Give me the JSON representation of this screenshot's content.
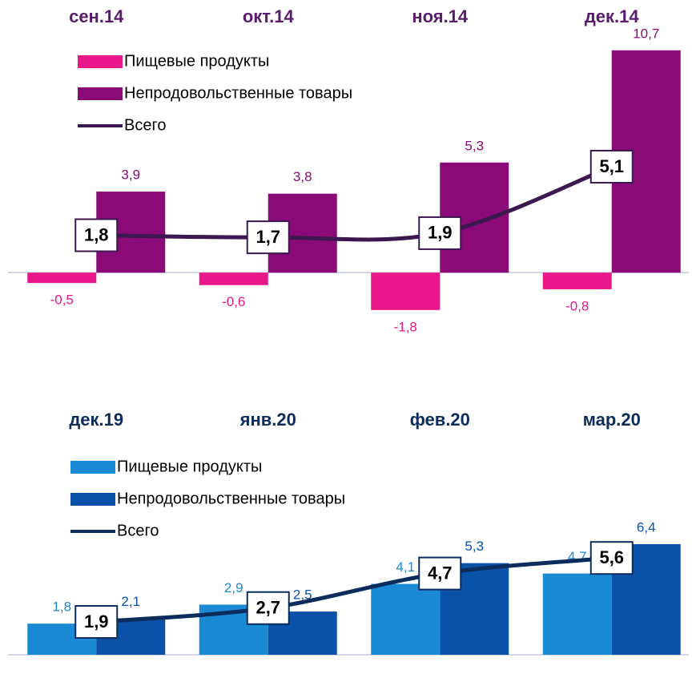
{
  "chart_data": [
    {
      "type": "bar",
      "categories": [
        "сен.14",
        "окт.14",
        "ноя.14",
        "дек.14"
      ],
      "ylim": [
        -2.5,
        11
      ],
      "series": [
        {
          "name": "Пищевые продукты",
          "color": "#e8178a",
          "values": [
            -0.5,
            -0.6,
            -1.8,
            -0.8
          ],
          "value_labels": [
            "-0,5",
            "-0,6",
            "-1,8",
            "-0,8"
          ]
        },
        {
          "name": "Непродовольственные товары",
          "color": "#8a0a78",
          "values": [
            3.9,
            3.8,
            5.3,
            10.7
          ],
          "value_labels": [
            "3,9",
            "3,8",
            "5,3",
            "10,7"
          ]
        },
        {
          "name": "Всего",
          "type": "line",
          "color": "#3d1850",
          "values": [
            1.8,
            1.7,
            1.9,
            5.1
          ],
          "value_labels": [
            "1,8",
            "1,7",
            "1,9",
            "5,1"
          ]
        }
      ]
    },
    {
      "type": "bar",
      "categories": [
        "дек.19",
        "янв.20",
        "фев.20",
        "мар.20"
      ],
      "ylim": [
        0,
        7
      ],
      "series": [
        {
          "name": "Пищевые продукты",
          "color": "#1a8ad4",
          "values": [
            1.8,
            2.9,
            4.1,
            4.7
          ],
          "value_labels": [
            "1,8",
            "2,9",
            "4,1",
            "4,7"
          ]
        },
        {
          "name": "Непродовольственные товары",
          "color": "#0a52a8",
          "values": [
            2.1,
            2.5,
            5.3,
            6.4
          ],
          "value_labels": [
            "2,1",
            "2,5",
            "5,3",
            "6,4"
          ]
        },
        {
          "name": "Всего",
          "type": "line",
          "color": "#0c2c5c",
          "values": [
            1.9,
            2.7,
            4.7,
            5.6
          ],
          "value_labels": [
            "1,9",
            "2,7",
            "4,7",
            "5,6"
          ]
        }
      ]
    }
  ]
}
